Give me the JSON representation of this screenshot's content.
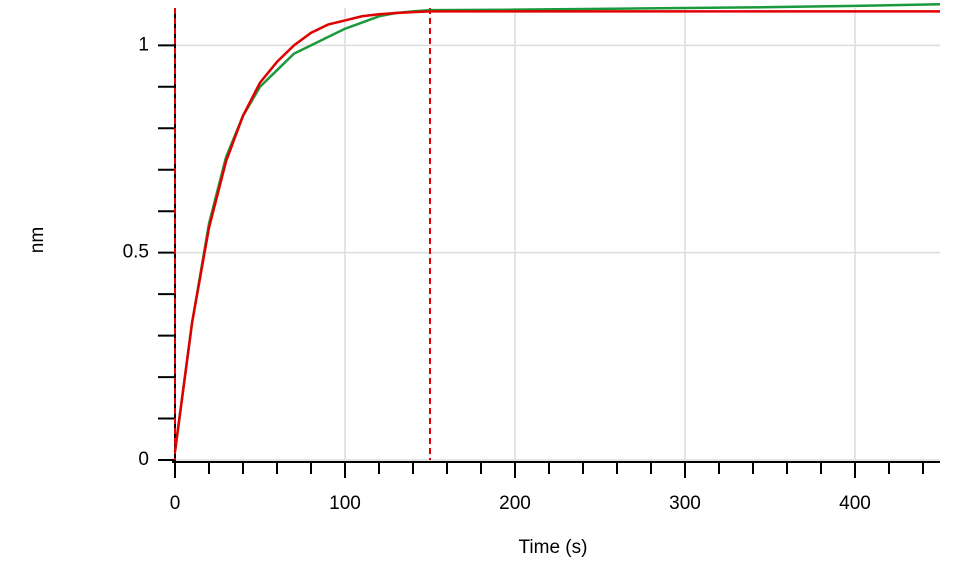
{
  "chart_data": {
    "type": "line",
    "xlabel": "Time (s)",
    "ylabel": "nm",
    "xlim": [
      0,
      450
    ],
    "ylim": [
      0,
      1.09
    ],
    "xticks": [
      0,
      100,
      200,
      300,
      400
    ],
    "yticks": [
      0,
      0.5,
      1
    ],
    "xminorticks": [
      20,
      40,
      60,
      80,
      120,
      140,
      160,
      180,
      220,
      240,
      260,
      280,
      320,
      340,
      360,
      380,
      420,
      440
    ],
    "yminorticks": [
      0.1,
      0.2,
      0.3,
      0.4,
      0.6,
      0.7,
      0.8,
      0.9
    ],
    "grid": true,
    "vlines": [
      {
        "x": 0,
        "color": "#000000"
      },
      {
        "x": 0,
        "color": "#e00000"
      },
      {
        "x": 150,
        "color": "#e00000"
      }
    ],
    "series": [
      {
        "color": "#1a9a3c",
        "x": [
          0,
          10,
          20,
          30,
          40,
          50,
          60,
          70,
          80,
          90,
          100,
          110,
          120,
          130,
          140,
          150,
          200,
          250,
          300,
          350,
          400,
          450
        ],
        "values": [
          0.02,
          0.33,
          0.57,
          0.73,
          0.83,
          0.9,
          0.94,
          0.98,
          1.0,
          1.02,
          1.04,
          1.055,
          1.07,
          1.078,
          1.082,
          1.085,
          1.086,
          1.088,
          1.09,
          1.092,
          1.095,
          1.099
        ]
      },
      {
        "color": "#e00000",
        "x": [
          0,
          10,
          20,
          30,
          40,
          50,
          60,
          70,
          80,
          90,
          100,
          110,
          120,
          130,
          140,
          150,
          450
        ],
        "values": [
          0.02,
          0.33,
          0.56,
          0.72,
          0.83,
          0.91,
          0.96,
          1.0,
          1.03,
          1.05,
          1.06,
          1.07,
          1.075,
          1.078,
          1.08,
          1.082,
          1.082
        ]
      }
    ]
  }
}
